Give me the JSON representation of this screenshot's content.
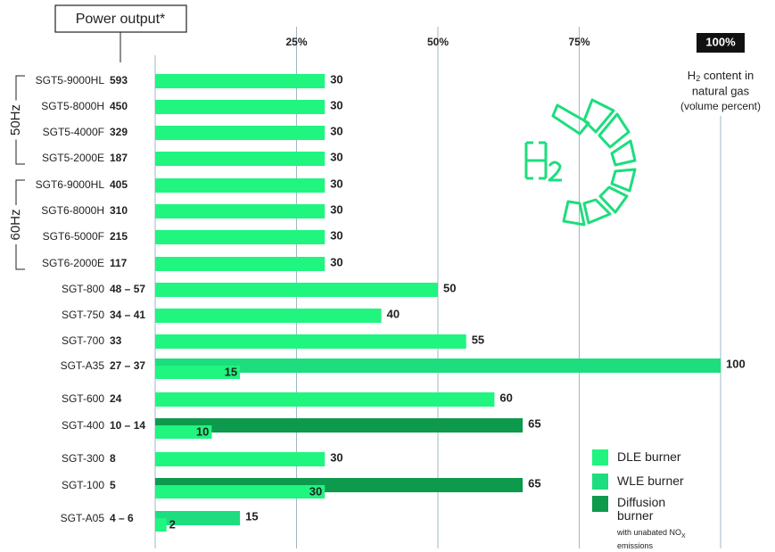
{
  "chart_data": {
    "type": "bar",
    "orientation": "horizontal",
    "title": "Power output*",
    "categories": [
      "SGT5-9000HL",
      "SGT5-8000H",
      "SGT5-4000F",
      "SGT5-2000E",
      "SGT6-9000HL",
      "SGT6-8000H",
      "SGT6-5000F",
      "SGT6-2000E",
      "SGT-800",
      "SGT-750",
      "SGT-700",
      "SGT-A35",
      "SGT-600",
      "SGT-400",
      "SGT-300",
      "SGT-100",
      "SGT-A05"
    ],
    "power_output": [
      "593",
      "450",
      "329",
      "187",
      "405",
      "310",
      "215",
      "117",
      "48 – 57",
      "34 – 41",
      "33",
      "27 – 37",
      "24",
      "10 – 14",
      "8",
      "5",
      "4 – 6"
    ],
    "groups": [
      {
        "label": "50Hz",
        "rows": [
          0,
          3
        ]
      },
      {
        "label": "60Hz",
        "rows": [
          4,
          7
        ]
      }
    ],
    "series": [
      {
        "name": "DLE burner",
        "color": "#1ff57f",
        "values": [
          30,
          30,
          30,
          30,
          30,
          30,
          30,
          30,
          50,
          40,
          55,
          15,
          60,
          10,
          30,
          30,
          2
        ]
      },
      {
        "name": "WLE burner",
        "color": "#1ddd7e",
        "values": [
          null,
          null,
          null,
          null,
          null,
          null,
          null,
          null,
          null,
          null,
          null,
          100,
          null,
          null,
          null,
          null,
          15
        ]
      },
      {
        "name": "Diffusion burner",
        "color": "#0d9a4c",
        "values": [
          null,
          null,
          null,
          null,
          null,
          null,
          null,
          null,
          null,
          null,
          null,
          null,
          null,
          65,
          null,
          65,
          null
        ]
      }
    ],
    "xlim": [
      0,
      100
    ],
    "xticks": [
      {
        "value": 25,
        "label": "25%"
      },
      {
        "value": 50,
        "label": "50%"
      },
      {
        "value": 75,
        "label": "75%"
      },
      {
        "value": 100,
        "label": "100%"
      }
    ],
    "grid": true,
    "axis_annotation": {
      "line1": {
        "text": "H",
        "sub": "2",
        "tail": " content in"
      },
      "line2": "natural gas",
      "line3": "(volume percent)"
    },
    "legend_note": {
      "text": "with unabated NO",
      "sub": "X",
      "tail": "emissions"
    }
  }
}
